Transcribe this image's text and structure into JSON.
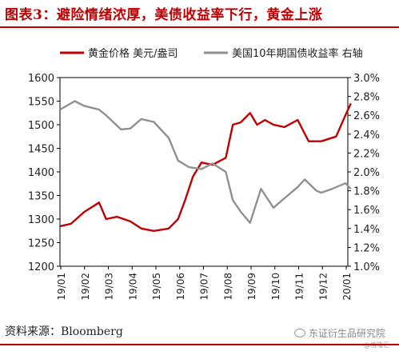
{
  "figure": {
    "title": "图表3：避险情绪浓厚，美债收益率下行，黄金上涨",
    "source": "资料来源：Bloomberg",
    "watermark": "东证衍生品研究院",
    "watermark_small": "@格隆汇"
  },
  "colors": {
    "gold": "#c00000",
    "yield": "#909090",
    "accent": "#c00000"
  },
  "chart_data": {
    "type": "line",
    "x_ticks": [
      "19/01",
      "19/02",
      "19/03",
      "19/04",
      "19/05",
      "19/06",
      "19/07",
      "19/08",
      "19/09",
      "19/10",
      "19/11",
      "19/12",
      "20/01"
    ],
    "y_left": {
      "ticks": [
        "1200",
        "1250",
        "1300",
        "1350",
        "1400",
        "1450",
        "1500",
        "1550",
        "1600"
      ],
      "range": [
        1200,
        1600
      ]
    },
    "y_right": {
      "ticks": [
        "1.0%",
        "1.2%",
        "1.4%",
        "1.6%",
        "1.8%",
        "2.0%",
        "2.2%",
        "2.4%",
        "2.6%",
        "2.8%",
        "3.0%"
      ],
      "range": [
        1.0,
        3.0
      ]
    },
    "series": [
      {
        "name": "黄金价格 美元/盎司",
        "axis": "left",
        "x": [
          "2019-01-01",
          "2019-01-15",
          "2019-02-01",
          "2019-02-20",
          "2019-03-01",
          "2019-03-15",
          "2019-04-01",
          "2019-04-15",
          "2019-05-01",
          "2019-05-20",
          "2019-06-01",
          "2019-06-10",
          "2019-06-20",
          "2019-07-01",
          "2019-07-15",
          "2019-08-01",
          "2019-08-10",
          "2019-08-20",
          "2019-09-01",
          "2019-09-10",
          "2019-09-20",
          "2019-10-01",
          "2019-10-15",
          "2019-11-01",
          "2019-11-15",
          "2019-12-01",
          "2019-12-20",
          "2020-01-01",
          "2020-01-08"
        ],
        "values": [
          1285,
          1290,
          1315,
          1335,
          1300,
          1305,
          1295,
          1280,
          1275,
          1280,
          1300,
          1340,
          1390,
          1420,
          1415,
          1430,
          1500,
          1505,
          1525,
          1500,
          1510,
          1500,
          1495,
          1510,
          1465,
          1465,
          1475,
          1520,
          1545
        ]
      },
      {
        "name": "美国10年期国债收益率 右轴",
        "axis": "right",
        "x": [
          "2019-01-01",
          "2019-01-20",
          "2019-02-01",
          "2019-02-20",
          "2019-03-01",
          "2019-03-20",
          "2019-04-01",
          "2019-04-15",
          "2019-05-01",
          "2019-05-20",
          "2019-06-01",
          "2019-06-15",
          "2019-07-01",
          "2019-07-15",
          "2019-08-01",
          "2019-08-10",
          "2019-08-20",
          "2019-09-01",
          "2019-09-15",
          "2019-10-01",
          "2019-10-15",
          "2019-11-01",
          "2019-11-10",
          "2019-11-25",
          "2019-12-01",
          "2019-12-15",
          "2020-01-01",
          "2020-01-08"
        ],
        "values": [
          2.66,
          2.75,
          2.7,
          2.66,
          2.6,
          2.45,
          2.46,
          2.56,
          2.53,
          2.36,
          2.12,
          2.05,
          2.03,
          2.09,
          2.0,
          1.7,
          1.58,
          1.46,
          1.82,
          1.62,
          1.72,
          1.84,
          1.92,
          1.8,
          1.78,
          1.82,
          1.88,
          1.82
        ]
      }
    ]
  }
}
